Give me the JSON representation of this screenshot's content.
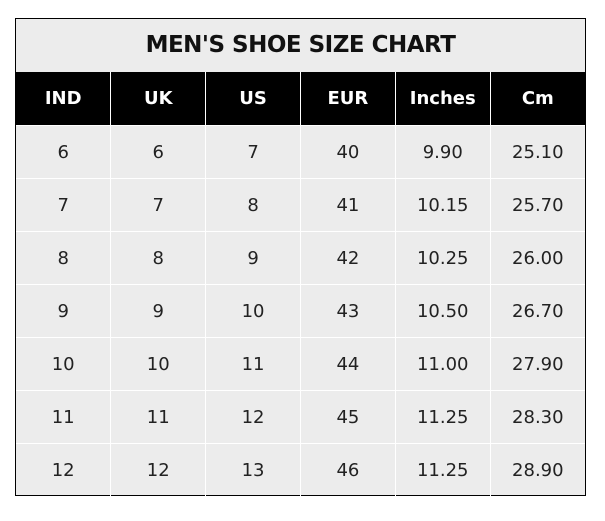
{
  "title": "MEN'S SHOE SIZE CHART",
  "columns": [
    "IND",
    "UK",
    "US",
    "EUR",
    "Inches",
    "Cm"
  ],
  "rows": [
    [
      "6",
      "6",
      "7",
      "40",
      "9.90",
      "25.10"
    ],
    [
      "7",
      "7",
      "8",
      "41",
      "10.15",
      "25.70"
    ],
    [
      "8",
      "8",
      "9",
      "42",
      "10.25",
      "26.00"
    ],
    [
      "9",
      "9",
      "10",
      "43",
      "10.50",
      "26.70"
    ],
    [
      "10",
      "10",
      "11",
      "44",
      "11.00",
      "27.90"
    ],
    [
      "11",
      "11",
      "12",
      "45",
      "11.25",
      "28.30"
    ],
    [
      "12",
      "12",
      "13",
      "46",
      "11.25",
      "28.90"
    ]
  ],
  "colors": {
    "header_bg": "#000000",
    "header_text": "#ffffff",
    "body_bg": "#ececec",
    "grid": "#ffffff"
  }
}
